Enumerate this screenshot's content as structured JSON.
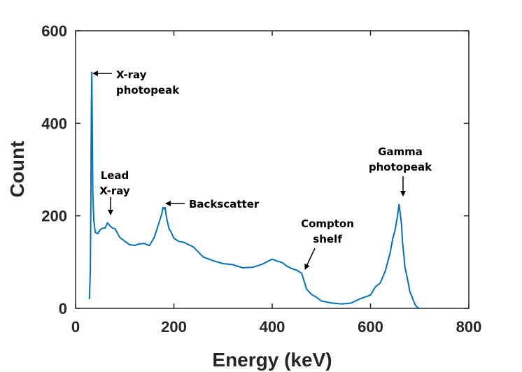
{
  "chart_data": {
    "type": "line",
    "title": "",
    "xlabel": "Energy (keV)",
    "ylabel": "Count",
    "xlim": [
      0,
      800
    ],
    "ylim": [
      0,
      600
    ],
    "xticks": [
      0,
      200,
      400,
      600,
      800
    ],
    "yticks": [
      0,
      200,
      400,
      600
    ],
    "grid": false,
    "line_color": "#0072BD",
    "series": [
      {
        "x": [
          28,
          30,
          31,
          32,
          33,
          34,
          35,
          37,
          40,
          45,
          50,
          55,
          60,
          65,
          70,
          75,
          80,
          90,
          100,
          110,
          120,
          130,
          140,
          150,
          160,
          165,
          170,
          175,
          178,
          180,
          182,
          185,
          190,
          195,
          200,
          210,
          220,
          240,
          260,
          280,
          300,
          320,
          340,
          360,
          380,
          400,
          410,
          420,
          430,
          440,
          450,
          460,
          465,
          470,
          480,
          490,
          500,
          520,
          540,
          560,
          580,
          600,
          610,
          620,
          630,
          640,
          645,
          650,
          655,
          658,
          660,
          663,
          665,
          668,
          670,
          675,
          680,
          685,
          690,
          695,
          700
        ],
        "y": [
          20,
          80,
          220,
          420,
          510,
          380,
          250,
          190,
          170,
          165,
          170,
          175,
          180,
          185,
          180,
          170,
          165,
          150,
          140,
          135,
          130,
          135,
          135,
          140,
          160,
          175,
          190,
          210,
          225,
          220,
          210,
          190,
          170,
          160,
          150,
          140,
          135,
          125,
          115,
          105,
          100,
          95,
          92,
          95,
          98,
          100,
          100,
          95,
          90,
          85,
          80,
          75,
          60,
          45,
          35,
          25,
          20,
          18,
          15,
          18,
          20,
          28,
          40,
          55,
          80,
          120,
          145,
          175,
          205,
          230,
          215,
          185,
          150,
          120,
          95,
          60,
          35,
          18,
          8,
          2,
          0
        ]
      }
    ],
    "annotations": [
      {
        "lines": [
          "X-ray",
          "photopeak"
        ],
        "x": 30,
        "y": 505
      },
      {
        "lines": [
          "Lead",
          "X-ray"
        ],
        "x": 72,
        "y": 200
      },
      {
        "lines": [
          "Backscatter"
        ],
        "x": 180,
        "y": 228
      },
      {
        "lines": [
          "Compton",
          "shelf"
        ],
        "x": 460,
        "y": 82
      },
      {
        "lines": [
          "Gamma",
          "photopeak"
        ],
        "x": 660,
        "y": 240
      }
    ]
  }
}
